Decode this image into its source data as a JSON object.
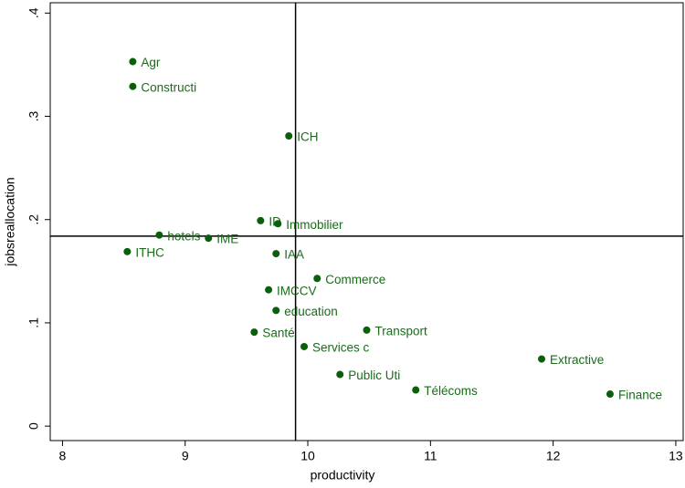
{
  "chart_data": {
    "type": "scatter",
    "x_label": "productivity",
    "y_label": "jobsreallocation",
    "color": "#0a5f0a",
    "xlim": [
      7.9,
      13.06
    ],
    "ylim": [
      -0.014,
      0.41
    ],
    "xticks": [
      8,
      9,
      10,
      11,
      12,
      13
    ],
    "yticks": [
      0,
      {
        "value": 0.1,
        "label": ".1"
      },
      {
        "value": 0.2,
        "label": ".2"
      },
      {
        "value": 0.3,
        "label": ".3"
      },
      {
        "value": 0.4,
        "label": ".4"
      }
    ],
    "xline": 9.9,
    "yline": 0.184,
    "labels": [
      "Agr",
      "Constructi",
      "ICH",
      "ID",
      "Immobilier",
      "hotels",
      "IME",
      "ITHC",
      "IAA",
      "Commerce",
      "IMCCV",
      "education",
      "Santé",
      "Transport",
      "Services c",
      "Extractive",
      "Public Uti",
      "Télécoms",
      "Finance"
    ],
    "x": [
      8.573,
      8.573,
      9.845,
      9.615,
      9.756,
      8.789,
      9.19,
      8.528,
      9.741,
      10.076,
      9.68,
      9.741,
      9.563,
      10.48,
      9.97,
      11.906,
      10.262,
      10.88,
      12.464
    ],
    "values": [
      0.353,
      0.329,
      0.281,
      0.199,
      0.196,
      0.185,
      0.182,
      0.169,
      0.167,
      0.143,
      0.132,
      0.112,
      0.091,
      0.093,
      0.077,
      0.065,
      0.05,
      0.035,
      0.031
    ]
  }
}
